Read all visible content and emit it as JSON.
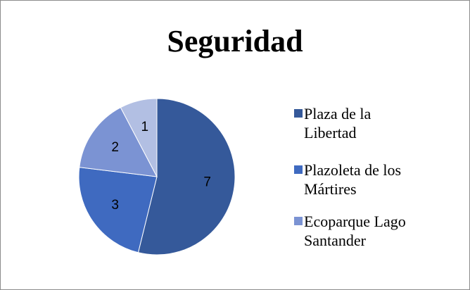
{
  "chart_data": {
    "type": "pie",
    "title": "Seguridad",
    "categories": [
      "Plaza de la Libertad",
      "Plazoleta de los Mártires",
      "Ecoparque Lago Santander",
      null
    ],
    "values": [
      7,
      3,
      2,
      1
    ],
    "colors": [
      "#35599a",
      "#3f6ac0",
      "#7b93d3",
      "#b2bfe3"
    ],
    "legend": "right"
  }
}
